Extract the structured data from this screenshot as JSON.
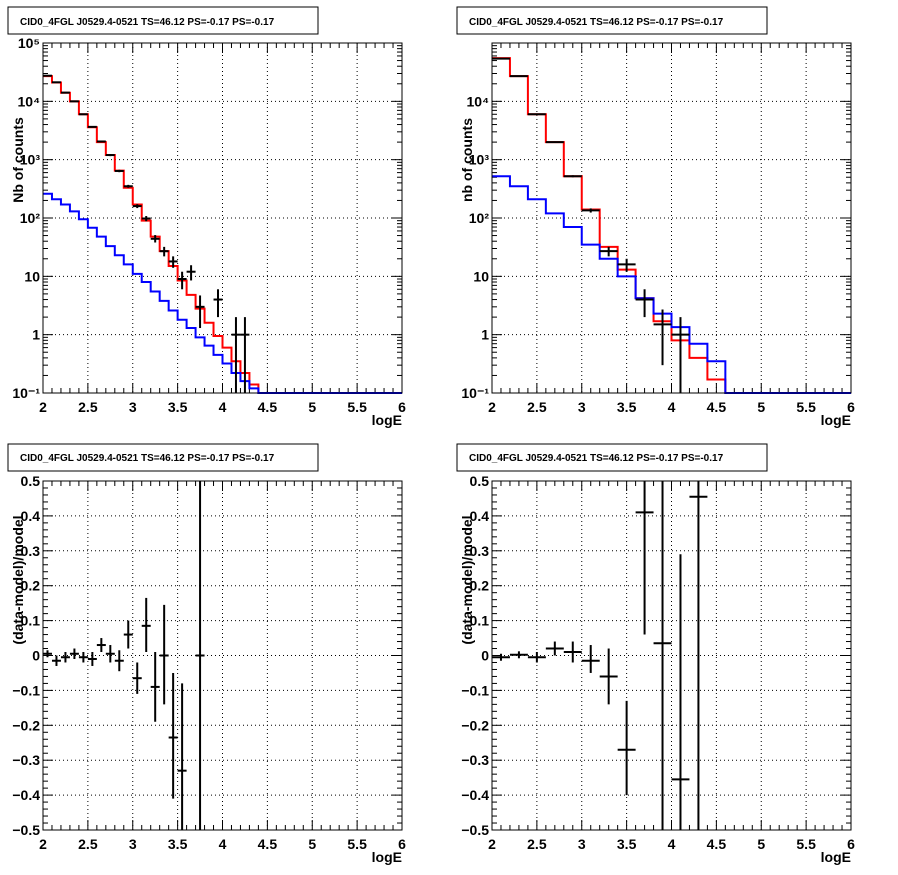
{
  "colors": {
    "data": "#000000",
    "model": "#ff0000",
    "component": "#0000ff",
    "grid": "#000000",
    "frame": "#000000"
  },
  "chart_data": [
    {
      "panel": "top-left",
      "type": "line",
      "title": "CID0_4FGL J0529.4-0521 TS=46.12 PS=-0.17 PS=-0.17",
      "xlabel": "logE",
      "ylabel": "Nb of counts",
      "yscale": "log",
      "xlim": [
        2,
        6
      ],
      "ylim": [
        0.1,
        100000
      ],
      "grid": true,
      "xticks": [
        "2",
        "2.5",
        "3",
        "3.5",
        "4",
        "4.5",
        "5",
        "5.5",
        "6"
      ],
      "yticks": [
        "10⁻¹",
        "1",
        "10",
        "10²",
        "10³",
        "10⁴",
        "10⁵"
      ],
      "bin_edges": [
        2.0,
        2.1,
        2.2,
        2.3,
        2.4,
        2.5,
        2.6,
        2.7,
        2.8,
        2.9,
        3.0,
        3.1,
        3.2,
        3.3,
        3.4,
        3.5,
        3.6,
        3.7,
        3.8,
        3.9,
        4.0,
        4.1,
        4.2,
        4.3,
        4.4,
        4.5,
        4.6,
        4.7,
        4.8,
        4.9,
        5.0,
        5.1,
        5.2,
        5.3,
        5.4,
        5.5,
        5.6,
        5.7,
        5.8,
        5.9,
        6.0
      ],
      "series": [
        {
          "role": "model",
          "values": [
            27000,
            21000,
            14000,
            10000,
            6000,
            3600,
            2000,
            1200,
            650,
            330,
            170,
            90,
            48,
            27,
            15,
            8.5,
            4.8,
            2.8,
            1.6,
            0.95,
            0.6,
            0.35,
            0.22,
            0.14,
            0.1,
            0.1,
            0.1,
            0.1,
            0.1,
            0.1,
            0.1,
            0.1,
            0.1,
            0.1,
            0.1,
            0.1,
            0.1,
            0.1,
            0.1,
            0.1
          ]
        },
        {
          "role": "component",
          "values": [
            260,
            210,
            170,
            130,
            95,
            68,
            48,
            33,
            23,
            16,
            11,
            8,
            5.5,
            3.8,
            2.6,
            1.8,
            1.3,
            0.9,
            0.65,
            0.45,
            0.32,
            0.22,
            0.16,
            0.12,
            0.1,
            0.1,
            0.1,
            0.1,
            0.1,
            0.1,
            0.1,
            0.1,
            0.1,
            0.1,
            0.1,
            0.1,
            0.1,
            0.1,
            0.1,
            0.1
          ]
        }
      ],
      "points": [
        {
          "x": 2.05,
          "y": 27500,
          "ylo": 27000,
          "yhi": 28000
        },
        {
          "x": 2.15,
          "y": 21200,
          "ylo": 20800,
          "yhi": 21600
        },
        {
          "x": 2.25,
          "y": 14100,
          "ylo": 13800,
          "yhi": 14400
        },
        {
          "x": 2.35,
          "y": 10000,
          "ylo": 9800,
          "yhi": 10200
        },
        {
          "x": 2.45,
          "y": 6000,
          "ylo": 5850,
          "yhi": 6150
        },
        {
          "x": 2.55,
          "y": 3650,
          "ylo": 3550,
          "yhi": 3750
        },
        {
          "x": 2.65,
          "y": 2050,
          "ylo": 1980,
          "yhi": 2120
        },
        {
          "x": 2.75,
          "y": 1200,
          "ylo": 1150,
          "yhi": 1250
        },
        {
          "x": 2.85,
          "y": 640,
          "ylo": 610,
          "yhi": 670
        },
        {
          "x": 2.95,
          "y": 350,
          "ylo": 330,
          "yhi": 370
        },
        {
          "x": 3.05,
          "y": 160,
          "ylo": 148,
          "yhi": 172
        },
        {
          "x": 3.15,
          "y": 98,
          "ylo": 88,
          "yhi": 108
        },
        {
          "x": 3.25,
          "y": 44,
          "ylo": 38,
          "yhi": 51
        },
        {
          "x": 3.35,
          "y": 27,
          "ylo": 22,
          "yhi": 32
        },
        {
          "x": 3.45,
          "y": 18,
          "ylo": 14,
          "yhi": 22
        },
        {
          "x": 3.55,
          "y": 9,
          "ylo": 6,
          "yhi": 12
        },
        {
          "x": 3.65,
          "y": 12,
          "ylo": 8.5,
          "yhi": 15.5
        },
        {
          "x": 3.75,
          "y": 3,
          "ylo": 1.3,
          "yhi": 4.7
        },
        {
          "x": 3.95,
          "y": 4,
          "ylo": 2,
          "yhi": 6
        },
        {
          "x": 4.15,
          "y": 1,
          "ylo": 0.1,
          "yhi": 2
        },
        {
          "x": 4.25,
          "y": 1,
          "ylo": 0.1,
          "yhi": 2
        }
      ]
    },
    {
      "panel": "top-right",
      "type": "line",
      "title": "CID0_4FGL J0529.4-0521 TS=46.12 PS=-0.17 PS=-0.17",
      "xlabel": "logE",
      "ylabel": "nb of counts",
      "yscale": "log",
      "xlim": [
        2,
        6
      ],
      "ylim": [
        0.1,
        100000
      ],
      "grid": true,
      "xticks": [
        "2",
        "2.5",
        "3",
        "3.5",
        "4",
        "4.5",
        "5",
        "5.5",
        "6"
      ],
      "yticks": [
        "10⁻¹",
        "1",
        "10",
        "10²",
        "10³",
        "10⁴"
      ],
      "bin_edges": [
        2.0,
        2.2,
        2.4,
        2.6,
        2.8,
        3.0,
        3.2,
        3.4,
        3.6,
        3.8,
        4.0,
        4.2,
        4.4,
        4.6,
        4.8,
        5.0,
        5.2,
        5.4,
        5.6,
        5.8,
        6.0
      ],
      "series": [
        {
          "role": "model",
          "values": [
            55000,
            27000,
            6000,
            2000,
            520,
            140,
            32,
            13,
            4.2,
            1.7,
            0.8,
            0.4,
            0.17,
            0.1,
            0.1,
            0.1,
            0.1,
            0.1,
            0.1,
            0.1
          ]
        },
        {
          "role": "component",
          "values": [
            520,
            350,
            210,
            120,
            70,
            35,
            20,
            10,
            4.2,
            2.3,
            1.35,
            0.7,
            0.35,
            0.1,
            0.1,
            0.1,
            0.1,
            0.1,
            0.1,
            0.1
          ]
        }
      ],
      "points": [
        {
          "x": 2.1,
          "y": 54000,
          "ylo": 53400,
          "yhi": 54600
        },
        {
          "x": 2.3,
          "y": 27000,
          "ylo": 26600,
          "yhi": 27400
        },
        {
          "x": 2.5,
          "y": 6000,
          "ylo": 5850,
          "yhi": 6150
        },
        {
          "x": 2.7,
          "y": 2000,
          "ylo": 1950,
          "yhi": 2050
        },
        {
          "x": 2.9,
          "y": 520,
          "ylo": 500,
          "yhi": 540
        },
        {
          "x": 3.1,
          "y": 135,
          "ylo": 124,
          "yhi": 146
        },
        {
          "x": 3.3,
          "y": 27,
          "ylo": 22,
          "yhi": 32
        },
        {
          "x": 3.5,
          "y": 16,
          "ylo": 12,
          "yhi": 20
        },
        {
          "x": 3.7,
          "y": 4,
          "ylo": 2,
          "yhi": 6
        },
        {
          "x": 3.9,
          "y": 1.5,
          "ylo": 0.3,
          "yhi": 2.7
        },
        {
          "x": 4.1,
          "y": 1,
          "ylo": 0.1,
          "yhi": 2
        }
      ]
    },
    {
      "panel": "bottom-left",
      "type": "scatter",
      "title": "CID0_4FGL J0529.4-0521 TS=46.12 PS=-0.17 PS=-0.17",
      "xlabel": "logE",
      "ylabel": "(data-model)/model",
      "xlim": [
        2,
        6
      ],
      "ylim": [
        -0.5,
        0.5
      ],
      "grid": true,
      "xticks": [
        "2",
        "2.5",
        "3",
        "3.5",
        "4",
        "4.5",
        "5",
        "5.5",
        "6"
      ],
      "yticks": [
        "−0.5",
        "−0.4",
        "−0.3",
        "−0.2",
        "−0.1",
        "0",
        "0.1",
        "0.2",
        "0.3",
        "0.4",
        "0.5"
      ],
      "points": [
        {
          "x": 2.05,
          "y": 0.005,
          "ylo": -0.005,
          "yhi": 0.015
        },
        {
          "x": 2.15,
          "y": -0.015,
          "ylo": -0.03,
          "yhi": 0.0
        },
        {
          "x": 2.25,
          "y": -0.005,
          "ylo": -0.02,
          "yhi": 0.01
        },
        {
          "x": 2.35,
          "y": 0.005,
          "ylo": -0.01,
          "yhi": 0.02
        },
        {
          "x": 2.45,
          "y": -0.005,
          "ylo": -0.02,
          "yhi": 0.01
        },
        {
          "x": 2.55,
          "y": -0.01,
          "ylo": -0.03,
          "yhi": 0.01
        },
        {
          "x": 2.65,
          "y": 0.03,
          "ylo": 0.01,
          "yhi": 0.05
        },
        {
          "x": 2.75,
          "y": 0.005,
          "ylo": -0.02,
          "yhi": 0.03
        },
        {
          "x": 2.85,
          "y": -0.015,
          "ylo": -0.045,
          "yhi": 0.015
        },
        {
          "x": 2.95,
          "y": 0.06,
          "ylo": 0.02,
          "yhi": 0.1
        },
        {
          "x": 3.05,
          "y": -0.065,
          "ylo": -0.11,
          "yhi": -0.02
        },
        {
          "x": 3.15,
          "y": 0.085,
          "ylo": 0.01,
          "yhi": 0.165
        },
        {
          "x": 3.25,
          "y": -0.09,
          "ylo": -0.19,
          "yhi": 0.01
        },
        {
          "x": 3.35,
          "y": 0.0,
          "ylo": -0.14,
          "yhi": 0.145
        },
        {
          "x": 3.45,
          "y": -0.235,
          "ylo": -0.41,
          "yhi": -0.05
        },
        {
          "x": 3.55,
          "y": -0.33,
          "ylo": -0.5,
          "yhi": -0.08
        },
        {
          "x": 3.75,
          "y": 0.0,
          "ylo": -0.5,
          "yhi": 0.5
        }
      ]
    },
    {
      "panel": "bottom-right",
      "type": "scatter",
      "title": "CID0_4FGL J0529.4-0521 TS=46.12 PS=-0.17 PS=-0.17",
      "xlabel": "logE",
      "ylabel": "(data-model)/model",
      "xlim": [
        2,
        6
      ],
      "ylim": [
        -0.5,
        0.5
      ],
      "grid": true,
      "xticks": [
        "2",
        "2.5",
        "3",
        "3.5",
        "4",
        "4.5",
        "5",
        "5.5",
        "6"
      ],
      "yticks": [
        "−0.5",
        "−0.4",
        "−0.3",
        "−0.2",
        "−0.1",
        "0",
        "0.1",
        "0.2",
        "0.3",
        "0.4",
        "0.5"
      ],
      "points": [
        {
          "x": 2.1,
          "y": -0.005,
          "ylo": -0.015,
          "yhi": 0.005
        },
        {
          "x": 2.3,
          "y": 0.002,
          "ylo": -0.008,
          "yhi": 0.012
        },
        {
          "x": 2.5,
          "y": -0.005,
          "ylo": -0.02,
          "yhi": 0.01
        },
        {
          "x": 2.7,
          "y": 0.02,
          "ylo": 0.0,
          "yhi": 0.04
        },
        {
          "x": 2.9,
          "y": 0.01,
          "ylo": -0.02,
          "yhi": 0.04
        },
        {
          "x": 3.1,
          "y": -0.015,
          "ylo": -0.05,
          "yhi": 0.03
        },
        {
          "x": 3.3,
          "y": -0.06,
          "ylo": -0.14,
          "yhi": 0.02
        },
        {
          "x": 3.5,
          "y": -0.27,
          "ylo": -0.4,
          "yhi": -0.13
        },
        {
          "x": 3.7,
          "y": 0.41,
          "ylo": 0.06,
          "yhi": 0.5
        },
        {
          "x": 3.9,
          "y": 0.035,
          "ylo": -0.5,
          "yhi": 0.5
        },
        {
          "x": 4.1,
          "y": -0.355,
          "ylo": -0.5,
          "yhi": 0.29
        },
        {
          "x": 4.3,
          "y": 0.455,
          "ylo": -0.5,
          "yhi": 0.5
        }
      ]
    }
  ]
}
